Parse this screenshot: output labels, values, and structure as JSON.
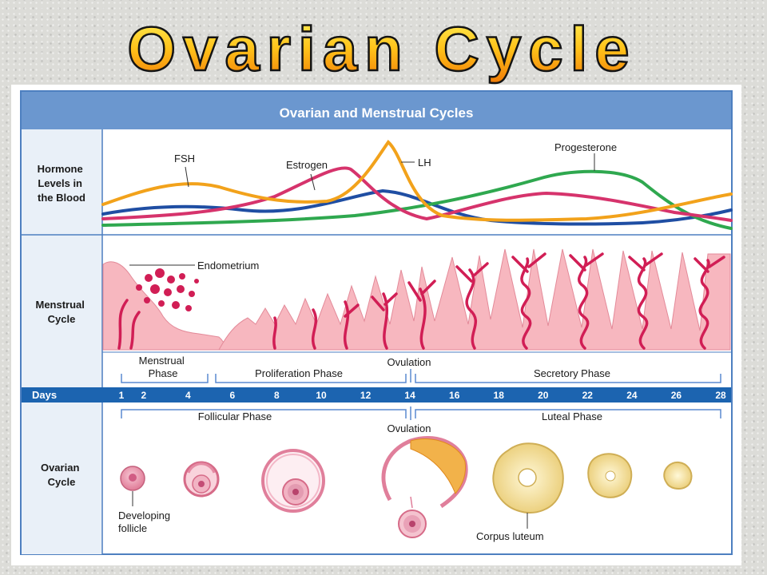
{
  "slide": {
    "title": "Ovarian Cycle"
  },
  "diagram": {
    "header": "Ovarian and Menstrual Cycles",
    "rows": {
      "hormones": [
        "Hormone",
        "Levels in",
        "the Blood"
      ],
      "menstrual": [
        "Menstrual",
        "Cycle"
      ],
      "days": "Days",
      "ovarian": [
        "Ovarian",
        "Cycle"
      ]
    },
    "hormone_labels": {
      "fsh": "FSH",
      "estrogen": "Estrogen",
      "lh": "LH",
      "progesterone": "Progesterone"
    },
    "endometrium": "Endometrium",
    "uterine_phases": {
      "menstrual": [
        "Menstrual",
        "Phase"
      ],
      "proliferation": "Proliferation Phase",
      "ovulation": "Ovulation",
      "secretory": "Secretory Phase"
    },
    "day_ticks": [
      "1",
      "2",
      "4",
      "6",
      "8",
      "10",
      "12",
      "14",
      "16",
      "18",
      "20",
      "22",
      "24",
      "26",
      "28"
    ],
    "ovarian_phases": {
      "follicular": "Follicular Phase",
      "ovulation": "Ovulation",
      "luteal": "Luteal Phase"
    },
    "structures": {
      "follicle": [
        "Developing",
        "follicle"
      ],
      "corpus_luteum": "Corpus luteum"
    },
    "colors": {
      "header_bg": "#6b97cf",
      "days_bar": "#1c64b0",
      "label_col": "#e9f0f8",
      "fsh": "#1f4ea3",
      "estrogen": "#d6336c",
      "lh": "#f2a21b",
      "progesterone": "#2fa84f",
      "tissue": "#f7b7bf",
      "vessel": "#d11e55",
      "follicle": "#e58aa3",
      "corpus": "#f3e3a3"
    }
  }
}
